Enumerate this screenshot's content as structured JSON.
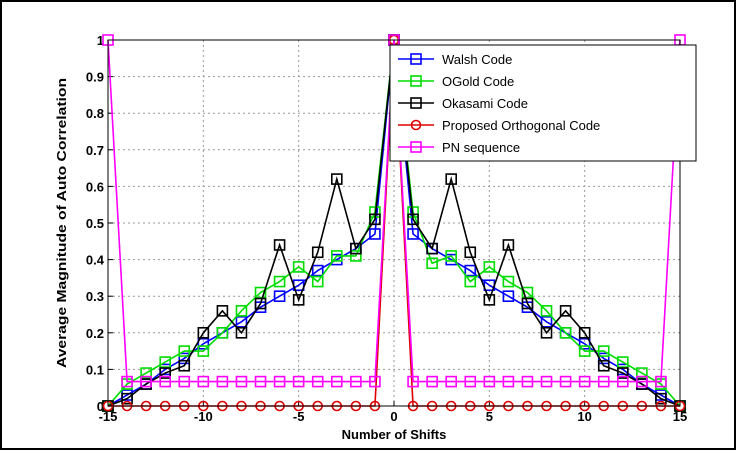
{
  "chart_data": {
    "type": "line",
    "title": "",
    "xlabel": "Number of Shifts",
    "ylabel": "Average Magnitude of Auto Correlation",
    "xlim": [
      -15,
      15
    ],
    "ylim": [
      0,
      1
    ],
    "xticks": [
      -15,
      -10,
      -5,
      0,
      5,
      10,
      15
    ],
    "yticks": [
      0,
      0.1,
      0.2,
      0.3,
      0.4,
      0.5,
      0.6,
      0.7,
      0.8,
      0.9,
      1
    ],
    "ytick_labels": [
      "0",
      "0.1",
      "0.2",
      "0.3",
      "0.4",
      "0.5",
      "0.6",
      "0.7",
      "0.8",
      "0.9",
      "1"
    ],
    "grid": true,
    "legend_position": "top-right",
    "series": [
      {
        "name": "Walsh Code",
        "color": "#0000ff",
        "marker": "square",
        "x": [
          -15,
          -14,
          -13,
          -12,
          -11,
          -10,
          -9,
          -8,
          -7,
          -6,
          -5,
          -4,
          -3,
          -2,
          -1,
          0,
          1,
          2,
          3,
          4,
          5,
          6,
          7,
          8,
          9,
          10,
          11,
          12,
          13,
          14,
          15
        ],
        "y": [
          0,
          0.03,
          0.06,
          0.1,
          0.13,
          0.17,
          0.2,
          0.23,
          0.27,
          0.3,
          0.33,
          0.37,
          0.4,
          0.43,
          0.47,
          1,
          0.47,
          0.43,
          0.4,
          0.37,
          0.33,
          0.3,
          0.27,
          0.23,
          0.2,
          0.17,
          0.13,
          0.1,
          0.06,
          0.03,
          0
        ]
      },
      {
        "name": "OGold Code",
        "color": "#00dd00",
        "marker": "square",
        "x": [
          -15,
          -14,
          -13,
          -12,
          -11,
          -10,
          -9,
          -8,
          -7,
          -6,
          -5,
          -4,
          -3,
          -2,
          -1,
          0,
          1,
          2,
          3,
          4,
          5,
          6,
          7,
          8,
          9,
          10,
          11,
          12,
          13,
          14,
          15
        ],
        "y": [
          0,
          0.06,
          0.09,
          0.12,
          0.15,
          0.15,
          0.2,
          0.26,
          0.31,
          0.34,
          0.38,
          0.34,
          0.41,
          0.41,
          0.53,
          1,
          0.53,
          0.39,
          0.41,
          0.34,
          0.38,
          0.34,
          0.31,
          0.26,
          0.2,
          0.15,
          0.15,
          0.12,
          0.09,
          0.06,
          0
        ]
      },
      {
        "name": "Okasami Code",
        "color": "#000000",
        "marker": "square",
        "x": [
          -15,
          -14,
          -13,
          -12,
          -11,
          -10,
          -9,
          -8,
          -7,
          -6,
          -5,
          -4,
          -3,
          -2,
          -1,
          0,
          1,
          2,
          3,
          4,
          5,
          6,
          7,
          8,
          9,
          10,
          11,
          12,
          13,
          14,
          15
        ],
        "y": [
          0,
          0.02,
          0.06,
          0.09,
          0.11,
          0.2,
          0.26,
          0.2,
          0.28,
          0.44,
          0.29,
          0.42,
          0.62,
          0.43,
          0.51,
          1,
          0.51,
          0.43,
          0.62,
          0.42,
          0.29,
          0.44,
          0.28,
          0.2,
          0.26,
          0.2,
          0.11,
          0.09,
          0.06,
          0.02,
          0
        ]
      },
      {
        "name": "Proposed Orthogonal Code",
        "color": "#dd0000",
        "marker": "circle",
        "x": [
          -15,
          -14,
          -13,
          -12,
          -11,
          -10,
          -9,
          -8,
          -7,
          -6,
          -5,
          -4,
          -3,
          -2,
          -1,
          0,
          1,
          2,
          3,
          4,
          5,
          6,
          7,
          8,
          9,
          10,
          11,
          12,
          13,
          14,
          15
        ],
        "y": [
          0,
          0,
          0,
          0,
          0,
          0,
          0,
          0,
          0,
          0,
          0,
          0,
          0,
          0,
          0,
          1,
          0,
          0,
          0,
          0,
          0,
          0,
          0,
          0,
          0,
          0,
          0,
          0,
          0,
          0,
          0
        ]
      },
      {
        "name": "PN sequence",
        "color": "#ff00ff",
        "marker": "square",
        "x": [
          -15,
          -14,
          -13,
          -12,
          -11,
          -10,
          -9,
          -8,
          -7,
          -6,
          -5,
          -4,
          -3,
          -2,
          -1,
          0,
          1,
          2,
          3,
          4,
          5,
          6,
          7,
          8,
          9,
          10,
          11,
          12,
          13,
          14,
          15
        ],
        "y": [
          1,
          0.0667,
          0.0667,
          0.0667,
          0.0667,
          0.0667,
          0.0667,
          0.0667,
          0.0667,
          0.0667,
          0.0667,
          0.0667,
          0.0667,
          0.0667,
          0.0667,
          1,
          0.0667,
          0.0667,
          0.0667,
          0.0667,
          0.0667,
          0.0667,
          0.0667,
          0.0667,
          0.0667,
          0.0667,
          0.0667,
          0.0667,
          0.0667,
          0.0667,
          1
        ]
      }
    ]
  }
}
